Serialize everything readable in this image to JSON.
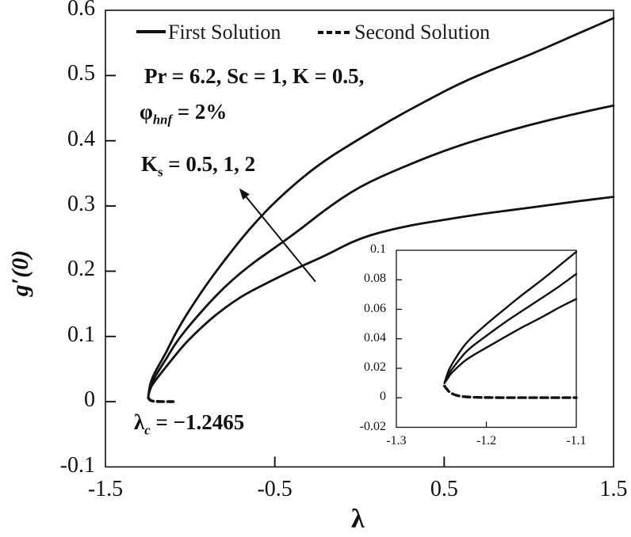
{
  "colors": {
    "ink": "#111111",
    "background": "#ffffff"
  },
  "legend": {
    "first_label": "First Solution",
    "second_label": "Second Solution"
  },
  "annotations": {
    "parameters": "Pr = 6.2, Sc = 1, K = 0.5,",
    "phi_symbol": "φ",
    "phi_sub": "hnf",
    "phi_rest": " = 2%",
    "ks_symbol": "K",
    "ks_sub": "s",
    "ks_rest": " = 0.5, 1, 2",
    "lambdac_symbol": "λ",
    "lambdac_sub": "c",
    "lambdac_rest": " = −1.2465"
  },
  "chart_data": [
    {
      "id": "main",
      "type": "line",
      "title": "",
      "xlabel": "λ",
      "ylabel": "g′(0)",
      "xlim": [
        -1.5,
        1.5
      ],
      "ylim": [
        -0.1,
        0.6
      ],
      "grid": false,
      "legend_position": "top-inside",
      "critical_point": {
        "lambda_c": -1.2465,
        "g": 0.009
      },
      "x_tick_values": [
        -1.5,
        -0.5,
        0.5,
        1.5
      ],
      "x_tick_labels": [
        "-1.5",
        "-0.5",
        "0.5",
        "1.5"
      ],
      "x_tick_marks": [
        -0.5,
        0.5
      ],
      "y_tick_values": [
        0.6,
        0.5,
        0.4,
        0.3,
        0.2,
        0.1,
        0,
        -0.1
      ],
      "y_tick_labels": [
        "0.6",
        "0.5",
        "0.4",
        "0.3",
        "0.2",
        "0.1",
        "0",
        "-0.1"
      ],
      "y_tick_marks": [
        0.5,
        0.4,
        0.3,
        0.2,
        0.1,
        0
      ],
      "arrow": {
        "from": [
          -0.26,
          0.184
        ],
        "to": [
          -0.71,
          0.327
        ],
        "meaning": "Ks = 0.5, 1, 2 increasing"
      },
      "series": [
        {
          "name": "First Solution, Ks = 2",
          "style": "solid",
          "points": [
            [
              -1.2465,
              0.009
            ],
            [
              -1.24,
              0.022
            ],
            [
              -1.23,
              0.032
            ],
            [
              -1.21,
              0.044
            ],
            [
              -1.18,
              0.058
            ],
            [
              -1.14,
              0.076
            ],
            [
              -1.1,
              0.098
            ],
            [
              -1.05,
              0.121
            ],
            [
              -1.0,
              0.142
            ],
            [
              -0.9,
              0.181
            ],
            [
              -0.8,
              0.216
            ],
            [
              -0.7,
              0.249
            ],
            [
              -0.6,
              0.279
            ],
            [
              -0.5,
              0.306
            ],
            [
              -0.35,
              0.341
            ],
            [
              -0.2,
              0.371
            ],
            [
              0,
              0.403
            ],
            [
              0.2,
              0.434
            ],
            [
              0.4,
              0.462
            ],
            [
              0.6,
              0.489
            ],
            [
              0.8,
              0.511
            ],
            [
              1.0,
              0.531
            ],
            [
              1.2,
              0.554
            ],
            [
              1.35,
              0.571
            ],
            [
              1.5,
              0.588
            ]
          ]
        },
        {
          "name": "First Solution, Ks = 1",
          "style": "solid",
          "points": [
            [
              -1.2465,
              0.009
            ],
            [
              -1.24,
              0.019
            ],
            [
              -1.23,
              0.027
            ],
            [
              -1.21,
              0.037
            ],
            [
              -1.18,
              0.05
            ],
            [
              -1.14,
              0.066
            ],
            [
              -1.1,
              0.084
            ],
            [
              -1.05,
              0.102
            ],
            [
              -1.0,
              0.118
            ],
            [
              -0.9,
              0.148
            ],
            [
              -0.8,
              0.175
            ],
            [
              -0.7,
              0.198
            ],
            [
              -0.6,
              0.218
            ],
            [
              -0.5,
              0.236
            ],
            [
              -0.35,
              0.264
            ],
            [
              -0.2,
              0.295
            ],
            [
              0,
              0.33
            ],
            [
              0.25,
              0.359
            ],
            [
              0.5,
              0.385
            ],
            [
              0.75,
              0.406
            ],
            [
              1.0,
              0.424
            ],
            [
              1.25,
              0.44
            ],
            [
              1.5,
              0.454
            ]
          ]
        },
        {
          "name": "First Solution, Ks = 0.5",
          "style": "solid",
          "points": [
            [
              -1.2465,
              0.009
            ],
            [
              -1.24,
              0.016
            ],
            [
              -1.23,
              0.023
            ],
            [
              -1.21,
              0.031
            ],
            [
              -1.18,
              0.041
            ],
            [
              -1.14,
              0.054
            ],
            [
              -1.1,
              0.067
            ],
            [
              -1.05,
              0.083
            ],
            [
              -1.0,
              0.097
            ],
            [
              -0.9,
              0.122
            ],
            [
              -0.8,
              0.143
            ],
            [
              -0.7,
              0.161
            ],
            [
              -0.6,
              0.175
            ],
            [
              -0.5,
              0.188
            ],
            [
              -0.35,
              0.207
            ],
            [
              -0.2,
              0.224
            ],
            [
              0,
              0.251
            ],
            [
              0.25,
              0.268
            ],
            [
              0.5,
              0.279
            ],
            [
              0.75,
              0.289
            ],
            [
              1.0,
              0.297
            ],
            [
              1.25,
              0.306
            ],
            [
              1.5,
              0.314
            ]
          ]
        },
        {
          "name": "Second Solution",
          "style": "dashed",
          "points": [
            [
              -1.2465,
              0.006
            ],
            [
              -1.24,
              0.003
            ],
            [
              -1.23,
              0.0015
            ],
            [
              -1.22,
              0.0008
            ],
            [
              -1.2,
              0.0004
            ],
            [
              -1.17,
              0.0002
            ],
            [
              -1.13,
              0.0001
            ],
            [
              -1.1,
              0.0001
            ]
          ]
        }
      ]
    },
    {
      "id": "inset",
      "type": "line",
      "title": "zoom near critical point",
      "xlabel": "",
      "ylabel": "",
      "xlim": [
        -1.3,
        -1.1
      ],
      "ylim": [
        -0.02,
        0.1
      ],
      "grid": false,
      "x_tick_values": [
        -1.3,
        -1.2,
        -1.1
      ],
      "x_tick_labels": [
        "-1.3",
        "-1.2",
        "-1.1"
      ],
      "x_tick_marks": [
        -1.2
      ],
      "y_tick_values": [
        0.1,
        0.08,
        0.06,
        0.04,
        0.02,
        0,
        -0.02
      ],
      "y_tick_labels": [
        "0.1",
        "0.08",
        "0.06",
        "0.04",
        "0.02",
        "0",
        "-0.02"
      ],
      "y_tick_marks": [
        0.08,
        0.06,
        0.04,
        0.02,
        0
      ],
      "series": [
        {
          "name": "First Solution, Ks = 2",
          "style": "solid",
          "points": [
            [
              -1.2465,
              0.01
            ],
            [
              -1.243,
              0.017
            ],
            [
              -1.24,
              0.021
            ],
            [
              -1.23,
              0.031
            ],
            [
              -1.22,
              0.039
            ],
            [
              -1.2,
              0.05
            ],
            [
              -1.18,
              0.06
            ],
            [
              -1.16,
              0.07
            ],
            [
              -1.14,
              0.079
            ],
            [
              -1.12,
              0.089
            ],
            [
              -1.1,
              0.099
            ]
          ]
        },
        {
          "name": "First Solution, Ks = 1",
          "style": "solid",
          "points": [
            [
              -1.2465,
              0.01
            ],
            [
              -1.243,
              0.015
            ],
            [
              -1.24,
              0.018
            ],
            [
              -1.23,
              0.026
            ],
            [
              -1.22,
              0.033
            ],
            [
              -1.2,
              0.042
            ],
            [
              -1.18,
              0.051
            ],
            [
              -1.16,
              0.059
            ],
            [
              -1.14,
              0.067
            ],
            [
              -1.12,
              0.075
            ],
            [
              -1.1,
              0.084
            ]
          ]
        },
        {
          "name": "First Solution, Ks = 0.5",
          "style": "solid",
          "points": [
            [
              -1.2465,
              0.01
            ],
            [
              -1.243,
              0.013
            ],
            [
              -1.24,
              0.016
            ],
            [
              -1.23,
              0.022
            ],
            [
              -1.22,
              0.027
            ],
            [
              -1.2,
              0.034
            ],
            [
              -1.18,
              0.041
            ],
            [
              -1.16,
              0.048
            ],
            [
              -1.14,
              0.054
            ],
            [
              -1.12,
              0.061
            ],
            [
              -1.1,
              0.067
            ]
          ]
        },
        {
          "name": "Second Solution",
          "style": "dashed",
          "points": [
            [
              -1.2465,
              0.008
            ],
            [
              -1.244,
              0.006
            ],
            [
              -1.242,
              0.0045
            ],
            [
              -1.24,
              0.0035
            ],
            [
              -1.236,
              0.0022
            ],
            [
              -1.232,
              0.0014
            ],
            [
              -1.226,
              0.0008
            ],
            [
              -1.22,
              0.0005
            ],
            [
              -1.21,
              0.0003
            ],
            [
              -1.2,
              0.0002
            ],
            [
              -1.18,
              0.0001
            ],
            [
              -1.15,
              0.0001
            ],
            [
              -1.12,
              0.0001
            ],
            [
              -1.1,
              0.0001
            ]
          ]
        }
      ]
    }
  ]
}
